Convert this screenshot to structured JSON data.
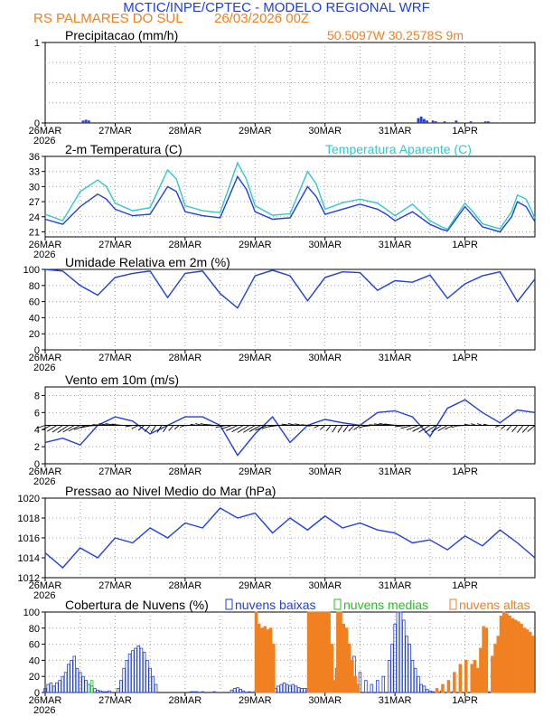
{
  "header": {
    "line1": "MCTIC/INPE/CPTEC - MODELO REGIONAL WRF",
    "line2_left": "RS PALMARES DO SUL",
    "line2_date": "26/03/2026 00Z",
    "location": "50.5097W 30.2578S 9m"
  },
  "colors": {
    "blue": "#1f3fe0",
    "orange": "#f08020",
    "cyan": "#30c8c8",
    "green": "#20c020",
    "black": "#000000",
    "grid": "#a0a0a0"
  },
  "x_axis": {
    "labels": [
      "26MAR",
      "27MAR",
      "28MAR",
      "29MAR",
      "30MAR",
      "31MAR",
      "1APR"
    ],
    "year": "2026",
    "hours_total": 168
  },
  "chart_data": [
    {
      "id": "precip",
      "type": "bar",
      "title": "Precipitacao (mm/h)",
      "ylim": [
        0,
        1
      ],
      "yticks": [
        "0",
        "1"
      ],
      "x_hours": [
        13,
        14,
        15,
        128,
        129,
        130,
        131,
        133,
        134,
        137,
        141,
        146,
        151,
        152
      ],
      "values": [
        0.03,
        0.04,
        0.03,
        0.06,
        0.08,
        0.05,
        0.03,
        0.03,
        0.02,
        0.02,
        0.03,
        0.02,
        0.02,
        0.02
      ]
    },
    {
      "id": "temp",
      "type": "line",
      "title": "2-m Temperatura (C)",
      "ylim": [
        20,
        36
      ],
      "yticks": [
        "21",
        "24",
        "27",
        "30",
        "33",
        "36"
      ],
      "series": [
        {
          "name": "2-m Temperatura (C)",
          "color": "blue",
          "x_hours": [
            0,
            6,
            12,
            18,
            21,
            24,
            30,
            36,
            42,
            45,
            48,
            54,
            60,
            66,
            69,
            72,
            78,
            84,
            90,
            93,
            96,
            102,
            108,
            114,
            117,
            120,
            126,
            132,
            136,
            138,
            144,
            147,
            150,
            156,
            160,
            162,
            165,
            168
          ],
          "values": [
            23.5,
            22.5,
            26,
            28.5,
            27.5,
            25.5,
            24.2,
            24.5,
            30,
            29,
            25,
            24.2,
            23.8,
            32,
            29.5,
            25,
            23.5,
            23.8,
            30,
            28,
            24.5,
            25.5,
            26.5,
            25.5,
            24.5,
            23.2,
            25,
            22.5,
            21.5,
            21.2,
            26,
            24,
            22,
            21,
            24,
            27,
            26,
            23
          ]
        },
        {
          "name": "Temperatura Aparente (C)",
          "color": "cyan",
          "x_hours": [
            0,
            6,
            12,
            18,
            21,
            24,
            30,
            36,
            42,
            45,
            48,
            54,
            60,
            66,
            69,
            72,
            78,
            84,
            90,
            93,
            96,
            102,
            108,
            114,
            117,
            120,
            126,
            132,
            136,
            138,
            144,
            147,
            150,
            156,
            160,
            162,
            165,
            168
          ],
          "values": [
            24.5,
            23.2,
            29,
            31.3,
            30,
            26.7,
            25.2,
            25.8,
            33.3,
            31.5,
            26.2,
            25.2,
            24.8,
            34.7,
            31.5,
            26.2,
            24.3,
            24.6,
            33,
            30.5,
            25.5,
            26.8,
            27.5,
            26.7,
            25.5,
            24.2,
            26.5,
            23.2,
            22,
            21.5,
            26.7,
            24.8,
            22.6,
            21.6,
            25,
            28.3,
            27.5,
            23.8
          ]
        }
      ]
    },
    {
      "id": "rh",
      "type": "line",
      "title": "Umidade Relativa em 2m (%)",
      "ylim": [
        0,
        100
      ],
      "yticks": [
        "0",
        "20",
        "40",
        "60",
        "80",
        "100"
      ],
      "series": [
        {
          "name": "Umidade Relativa",
          "color": "blue",
          "x_hours": [
            0,
            6,
            12,
            18,
            24,
            30,
            36,
            42,
            48,
            54,
            60,
            66,
            72,
            78,
            84,
            90,
            96,
            102,
            108,
            114,
            120,
            126,
            132,
            138,
            144,
            150,
            156,
            162,
            168
          ],
          "values": [
            100,
            98,
            80,
            68,
            90,
            95,
            98,
            65,
            95,
            98,
            70,
            52,
            92,
            99,
            92,
            61,
            90,
            97,
            96,
            74,
            86,
            84,
            93,
            64,
            82,
            92,
            97,
            60,
            88
          ]
        }
      ]
    },
    {
      "id": "wind",
      "type": "line",
      "title": "Vento em 10m (m/s)",
      "ylim": [
        0,
        9
      ],
      "yticks": [
        "0",
        "2",
        "4",
        "6",
        "8"
      ],
      "barb_axis_value": 4.5,
      "series": [
        {
          "name": "Vento em 10m",
          "color": "blue",
          "x_hours": [
            0,
            6,
            12,
            18,
            24,
            30,
            36,
            42,
            48,
            54,
            60,
            66,
            72,
            78,
            84,
            90,
            96,
            102,
            108,
            114,
            120,
            126,
            132,
            138,
            144,
            150,
            156,
            162,
            168
          ],
          "values": [
            2.5,
            3,
            2.2,
            4.5,
            5.5,
            5,
            3.5,
            4.5,
            5.5,
            5.5,
            4.5,
            1,
            3.5,
            5.5,
            2.5,
            4.5,
            5.2,
            4.8,
            4.5,
            6,
            6.2,
            5.5,
            3.2,
            6.5,
            7.5,
            6,
            4.8,
            6.3,
            6
          ]
        }
      ]
    },
    {
      "id": "pressure",
      "type": "line",
      "title": "Pressao ao Nivel Medio do Mar (hPa)",
      "ylim": [
        1012,
        1020
      ],
      "yticks": [
        "1012",
        "1014",
        "1016",
        "1018",
        "1020"
      ],
      "series": [
        {
          "name": "Pressao",
          "color": "blue",
          "x_hours": [
            0,
            6,
            12,
            18,
            24,
            30,
            36,
            42,
            48,
            54,
            60,
            66,
            72,
            78,
            84,
            90,
            96,
            102,
            108,
            114,
            120,
            126,
            132,
            138,
            144,
            150,
            156,
            162,
            168
          ],
          "values": [
            1014.5,
            1013,
            1015,
            1014,
            1016,
            1015.5,
            1017,
            1016,
            1017.5,
            1017,
            1019,
            1018,
            1018.5,
            1016.5,
            1018,
            1016.8,
            1018.2,
            1017,
            1017.5,
            1016.8,
            1016.5,
            1015.5,
            1015.8,
            1014.8,
            1016.2,
            1015.2,
            1016.8,
            1015.5,
            1014
          ]
        }
      ]
    },
    {
      "id": "clouds",
      "type": "bar",
      "title": "Cobertura de Nuvens (%)",
      "ylim": [
        0,
        100
      ],
      "yticks": [
        "0",
        "20",
        "40",
        "60",
        "80",
        "100"
      ],
      "legend": [
        "nuvens baixas",
        "nuvens medias",
        "nuvens altas"
      ],
      "series": [
        {
          "name": "nuvens baixas",
          "color": "blue",
          "x_hours": [
            0,
            1,
            2,
            3,
            4,
            5,
            6,
            7,
            8,
            9,
            10,
            11,
            12,
            13,
            14,
            15,
            16,
            17,
            18,
            19,
            20,
            21,
            22,
            25,
            26,
            27,
            28,
            29,
            30,
            31,
            32,
            33,
            34,
            35,
            36,
            37,
            38,
            50,
            51,
            52,
            54,
            58,
            64,
            65,
            66,
            67,
            68,
            70,
            72,
            74,
            76,
            78,
            79,
            80,
            81,
            82,
            83,
            84,
            85,
            86,
            87,
            88,
            89,
            90,
            91,
            92,
            93,
            94,
            95,
            96,
            97,
            98,
            100,
            102,
            104,
            106,
            108,
            110,
            112,
            114,
            116,
            118,
            119,
            120,
            121,
            122,
            123,
            124,
            125,
            126,
            127,
            128,
            129,
            130,
            131,
            132,
            133,
            136,
            140,
            150,
            152,
            154
          ],
          "values": [
            5,
            10,
            12,
            8,
            12,
            15,
            20,
            25,
            35,
            40,
            45,
            30,
            25,
            20,
            15,
            10,
            8,
            5,
            3,
            2,
            1,
            1,
            2,
            5,
            15,
            30,
            40,
            48,
            52,
            55,
            58,
            55,
            50,
            40,
            30,
            20,
            10,
            1,
            1,
            1,
            1,
            1,
            3,
            5,
            6,
            4,
            2,
            1,
            1,
            2,
            3,
            3,
            5,
            8,
            10,
            12,
            10,
            8,
            10,
            8,
            6,
            5,
            5,
            5,
            5,
            4,
            3,
            3,
            5,
            12,
            18,
            25,
            30,
            45,
            60,
            45,
            25,
            15,
            10,
            15,
            20,
            40,
            60,
            85,
            100,
            100,
            90,
            70,
            60,
            40,
            30,
            20,
            10,
            8,
            4,
            2,
            1,
            2,
            1,
            1,
            1,
            1
          ]
        },
        {
          "name": "nuvens medias",
          "color": "green",
          "x_hours": [
            15,
            16,
            97,
            98,
            99
          ],
          "values": [
            10,
            15,
            10,
            12,
            8
          ]
        },
        {
          "name": "nuvens altas",
          "color": "orange",
          "x_hours": [
            72,
            73,
            74,
            75,
            76,
            77,
            78,
            90,
            91,
            92,
            93,
            94,
            95,
            96,
            97,
            98,
            99,
            100,
            101,
            102,
            103,
            104,
            105,
            106,
            107,
            134,
            136,
            138,
            140,
            142,
            144,
            146,
            147,
            148,
            149,
            150,
            151,
            153,
            154,
            155,
            156,
            157,
            158,
            159,
            160,
            161,
            162,
            163,
            164,
            165,
            166,
            167
          ],
          "values": [
            100,
            85,
            80,
            82,
            78,
            80,
            60,
            100,
            100,
            100,
            100,
            100,
            100,
            100,
            100,
            60,
            15,
            100,
            100,
            85,
            80,
            60,
            40,
            20,
            10,
            5,
            10,
            15,
            25,
            35,
            40,
            35,
            40,
            30,
            55,
            82,
            80,
            45,
            60,
            70,
            95,
            100,
            98,
            95,
            92,
            90,
            88,
            85,
            80,
            78,
            75,
            70
          ]
        }
      ]
    }
  ]
}
